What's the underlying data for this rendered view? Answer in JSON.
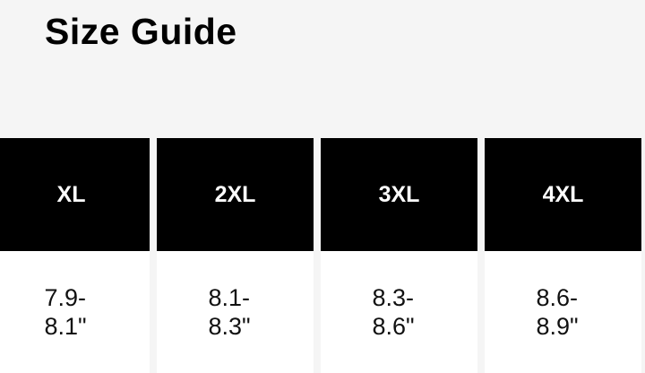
{
  "title": "Size Guide",
  "sizes": [
    {
      "label": "XL",
      "value_line1": "7.9-",
      "value_line2": "8.1\""
    },
    {
      "label": "2XL",
      "value_line1": "8.1-",
      "value_line2": "8.3\""
    },
    {
      "label": "3XL",
      "value_line1": "8.3-",
      "value_line2": "8.6\""
    },
    {
      "label": "4XL",
      "value_line1": "8.6-",
      "value_line2": "8.9\""
    }
  ]
}
